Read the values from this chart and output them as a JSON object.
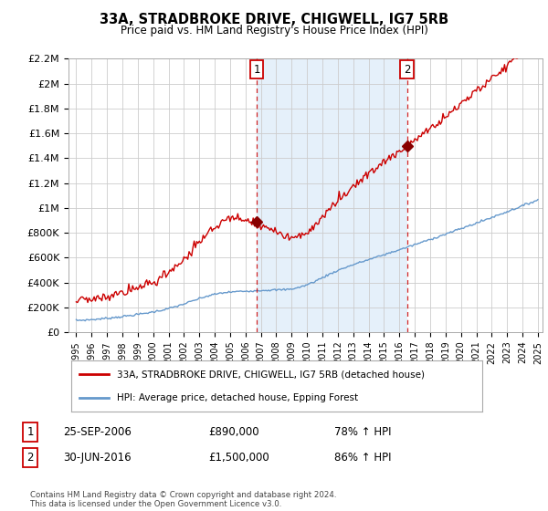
{
  "title": "33A, STRADBROKE DRIVE, CHIGWELL, IG7 5RB",
  "subtitle": "Price paid vs. HM Land Registry's House Price Index (HPI)",
  "ylabel_ticks": [
    "£0",
    "£200K",
    "£400K",
    "£600K",
    "£800K",
    "£1M",
    "£1.2M",
    "£1.4M",
    "£1.6M",
    "£1.8M",
    "£2M",
    "£2.2M"
  ],
  "ylim": [
    0,
    2200000
  ],
  "ytick_values": [
    0,
    200000,
    400000,
    600000,
    800000,
    1000000,
    1200000,
    1400000,
    1600000,
    1800000,
    2000000,
    2200000
  ],
  "x_start_year": 1995,
  "x_end_year": 2025,
  "xtick_years": [
    1995,
    1996,
    1997,
    1998,
    1999,
    2000,
    2001,
    2002,
    2003,
    2004,
    2005,
    2006,
    2007,
    2008,
    2009,
    2010,
    2011,
    2012,
    2013,
    2014,
    2015,
    2016,
    2017,
    2018,
    2019,
    2020,
    2021,
    2022,
    2023,
    2024,
    2025
  ],
  "sale1_x": 2006.73,
  "sale1_y": 890000,
  "sale1_label": "1",
  "sale1_date": "25-SEP-2006",
  "sale1_price": "£890,000",
  "sale1_hpi": "78% ↑ HPI",
  "sale2_x": 2016.5,
  "sale2_y": 1500000,
  "sale2_label": "2",
  "sale2_date": "30-JUN-2016",
  "sale2_price": "£1,500,000",
  "sale2_hpi": "86% ↑ HPI",
  "line1_color": "#cc0000",
  "line2_color": "#6699cc",
  "marker_color": "#880000",
  "vline_color": "#cc0000",
  "shade_color": "#d0e4f7",
  "grid_color": "#cccccc",
  "bg_color": "#ffffff",
  "legend1_label": "33A, STRADBROKE DRIVE, CHIGWELL, IG7 5RB (detached house)",
  "legend2_label": "HPI: Average price, detached house, Epping Forest",
  "footer": "Contains HM Land Registry data © Crown copyright and database right 2024.\nThis data is licensed under the Open Government Licence v3.0."
}
